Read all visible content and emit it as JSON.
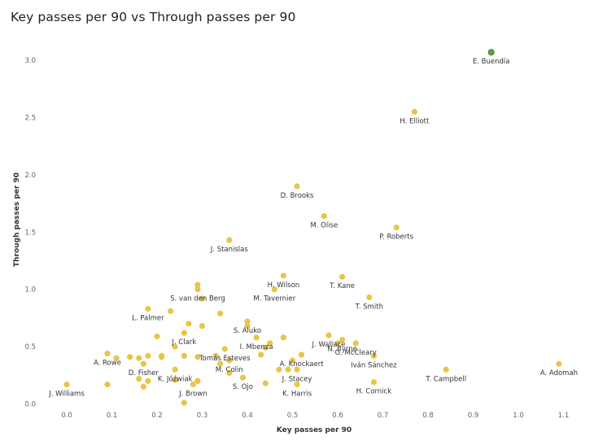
{
  "chart_data": {
    "type": "scatter",
    "title": "Key passes per 90 vs Through passes per 90",
    "xlabel": "Key passes per 90",
    "ylabel": "Through passes per 90",
    "xlim": [
      -0.05,
      1.15
    ],
    "ylim": [
      -0.05,
      3.2
    ],
    "xticks": [
      "0.0",
      "0.1",
      "0.2",
      "0.3",
      "0.4",
      "0.5",
      "0.6",
      "0.7",
      "0.8",
      "0.9",
      "1.0",
      "1.1"
    ],
    "yticks": [
      "0.0",
      "0.5",
      "1.0",
      "1.5",
      "2.0",
      "2.5",
      "3.0"
    ],
    "colors": {
      "default": "#E8C547",
      "highlight": "#5BA342",
      "highlight_stroke": "#3E7A2A"
    },
    "points": [
      {
        "x": 0.94,
        "y": 3.07,
        "label": "E. Buendía",
        "highlight": true
      },
      {
        "x": 0.77,
        "y": 2.55,
        "label": "H. Elliott"
      },
      {
        "x": 0.51,
        "y": 1.9,
        "label": "D. Brooks"
      },
      {
        "x": 0.57,
        "y": 1.64,
        "label": "M. Olise"
      },
      {
        "x": 0.73,
        "y": 1.54,
        "label": "P. Roberts"
      },
      {
        "x": 0.36,
        "y": 1.43,
        "label": "J. Stanislas"
      },
      {
        "x": 0.48,
        "y": 1.12,
        "label": "H. Wilson"
      },
      {
        "x": 0.61,
        "y": 1.11,
        "label": "T. Kane"
      },
      {
        "x": 0.29,
        "y": 1.04,
        "label": ""
      },
      {
        "x": 0.29,
        "y": 1.0,
        "label": "S. van den Berg"
      },
      {
        "x": 0.46,
        "y": 1.0,
        "label": "M. Tavernier"
      },
      {
        "x": 0.67,
        "y": 0.93,
        "label": "T. Smith"
      },
      {
        "x": 0.3,
        "y": 0.92,
        "label": ""
      },
      {
        "x": 0.18,
        "y": 0.83,
        "label": "L. Palmer"
      },
      {
        "x": 0.23,
        "y": 0.81,
        "label": ""
      },
      {
        "x": 0.34,
        "y": 0.79,
        "label": ""
      },
      {
        "x": 0.4,
        "y": 0.72,
        "label": "S. Aluko"
      },
      {
        "x": 0.27,
        "y": 0.7,
        "label": ""
      },
      {
        "x": 0.3,
        "y": 0.68,
        "label": ""
      },
      {
        "x": 0.4,
        "y": 0.68,
        "label": ""
      },
      {
        "x": 0.26,
        "y": 0.62,
        "label": "J. Clark"
      },
      {
        "x": 0.2,
        "y": 0.59,
        "label": ""
      },
      {
        "x": 0.42,
        "y": 0.58,
        "label": "I. Mbenza"
      },
      {
        "x": 0.48,
        "y": 0.58,
        "label": ""
      },
      {
        "x": 0.58,
        "y": 0.6,
        "label": "J. Wallace"
      },
      {
        "x": 0.61,
        "y": 0.56,
        "label": "N. Byrne"
      },
      {
        "x": 0.6,
        "y": 0.53,
        "label": ""
      },
      {
        "x": 0.64,
        "y": 0.53,
        "label": "G. McCleary"
      },
      {
        "x": 0.24,
        "y": 0.5,
        "label": ""
      },
      {
        "x": 0.35,
        "y": 0.48,
        "label": "Tomás Esteves"
      },
      {
        "x": 0.44,
        "y": 0.49,
        "label": ""
      },
      {
        "x": 0.45,
        "y": 0.53,
        "label": ""
      },
      {
        "x": 0.09,
        "y": 0.44,
        "label": "A. Rowe"
      },
      {
        "x": 0.11,
        "y": 0.4,
        "label": ""
      },
      {
        "x": 0.14,
        "y": 0.41,
        "label": ""
      },
      {
        "x": 0.16,
        "y": 0.4,
        "label": ""
      },
      {
        "x": 0.18,
        "y": 0.42,
        "label": ""
      },
      {
        "x": 0.21,
        "y": 0.41,
        "label": ""
      },
      {
        "x": 0.21,
        "y": 0.42,
        "label": ""
      },
      {
        "x": 0.26,
        "y": 0.42,
        "label": ""
      },
      {
        "x": 0.29,
        "y": 0.41,
        "label": ""
      },
      {
        "x": 0.33,
        "y": 0.42,
        "label": ""
      },
      {
        "x": 0.43,
        "y": 0.43,
        "label": ""
      },
      {
        "x": 0.52,
        "y": 0.43,
        "label": "A. Knockaert"
      },
      {
        "x": 0.68,
        "y": 0.42,
        "label": "Iván Sánchez"
      },
      {
        "x": 0.17,
        "y": 0.35,
        "label": "D. Fisher"
      },
      {
        "x": 0.24,
        "y": 0.3,
        "label": "K. Jóźwiak"
      },
      {
        "x": 0.34,
        "y": 0.35,
        "label": ""
      },
      {
        "x": 0.36,
        "y": 0.38,
        "label": "M. Colin"
      },
      {
        "x": 0.47,
        "y": 0.3,
        "label": ""
      },
      {
        "x": 0.49,
        "y": 0.3,
        "label": ""
      },
      {
        "x": 0.5,
        "y": 0.38,
        "label": ""
      },
      {
        "x": 0.51,
        "y": 0.3,
        "label": "J. Stacey"
      },
      {
        "x": 0.84,
        "y": 0.3,
        "label": "T. Campbell"
      },
      {
        "x": 1.09,
        "y": 0.35,
        "label": "A. Adomah"
      },
      {
        "x": 0.16,
        "y": 0.22,
        "label": ""
      },
      {
        "x": 0.18,
        "y": 0.2,
        "label": ""
      },
      {
        "x": 0.24,
        "y": 0.21,
        "label": ""
      },
      {
        "x": 0.36,
        "y": 0.27,
        "label": ""
      },
      {
        "x": 0.39,
        "y": 0.23,
        "label": "S. Ojo"
      },
      {
        "x": 0.0,
        "y": 0.17,
        "label": "J. Williams"
      },
      {
        "x": 0.09,
        "y": 0.17,
        "label": ""
      },
      {
        "x": 0.17,
        "y": 0.15,
        "label": ""
      },
      {
        "x": 0.29,
        "y": 0.2,
        "label": ""
      },
      {
        "x": 0.28,
        "y": 0.17,
        "label": "J. Brown"
      },
      {
        "x": 0.44,
        "y": 0.18,
        "label": ""
      },
      {
        "x": 0.51,
        "y": 0.17,
        "label": "K. Harris"
      },
      {
        "x": 0.68,
        "y": 0.19,
        "label": "H. Cornick"
      },
      {
        "x": 0.26,
        "y": 0.01,
        "label": ""
      }
    ]
  }
}
